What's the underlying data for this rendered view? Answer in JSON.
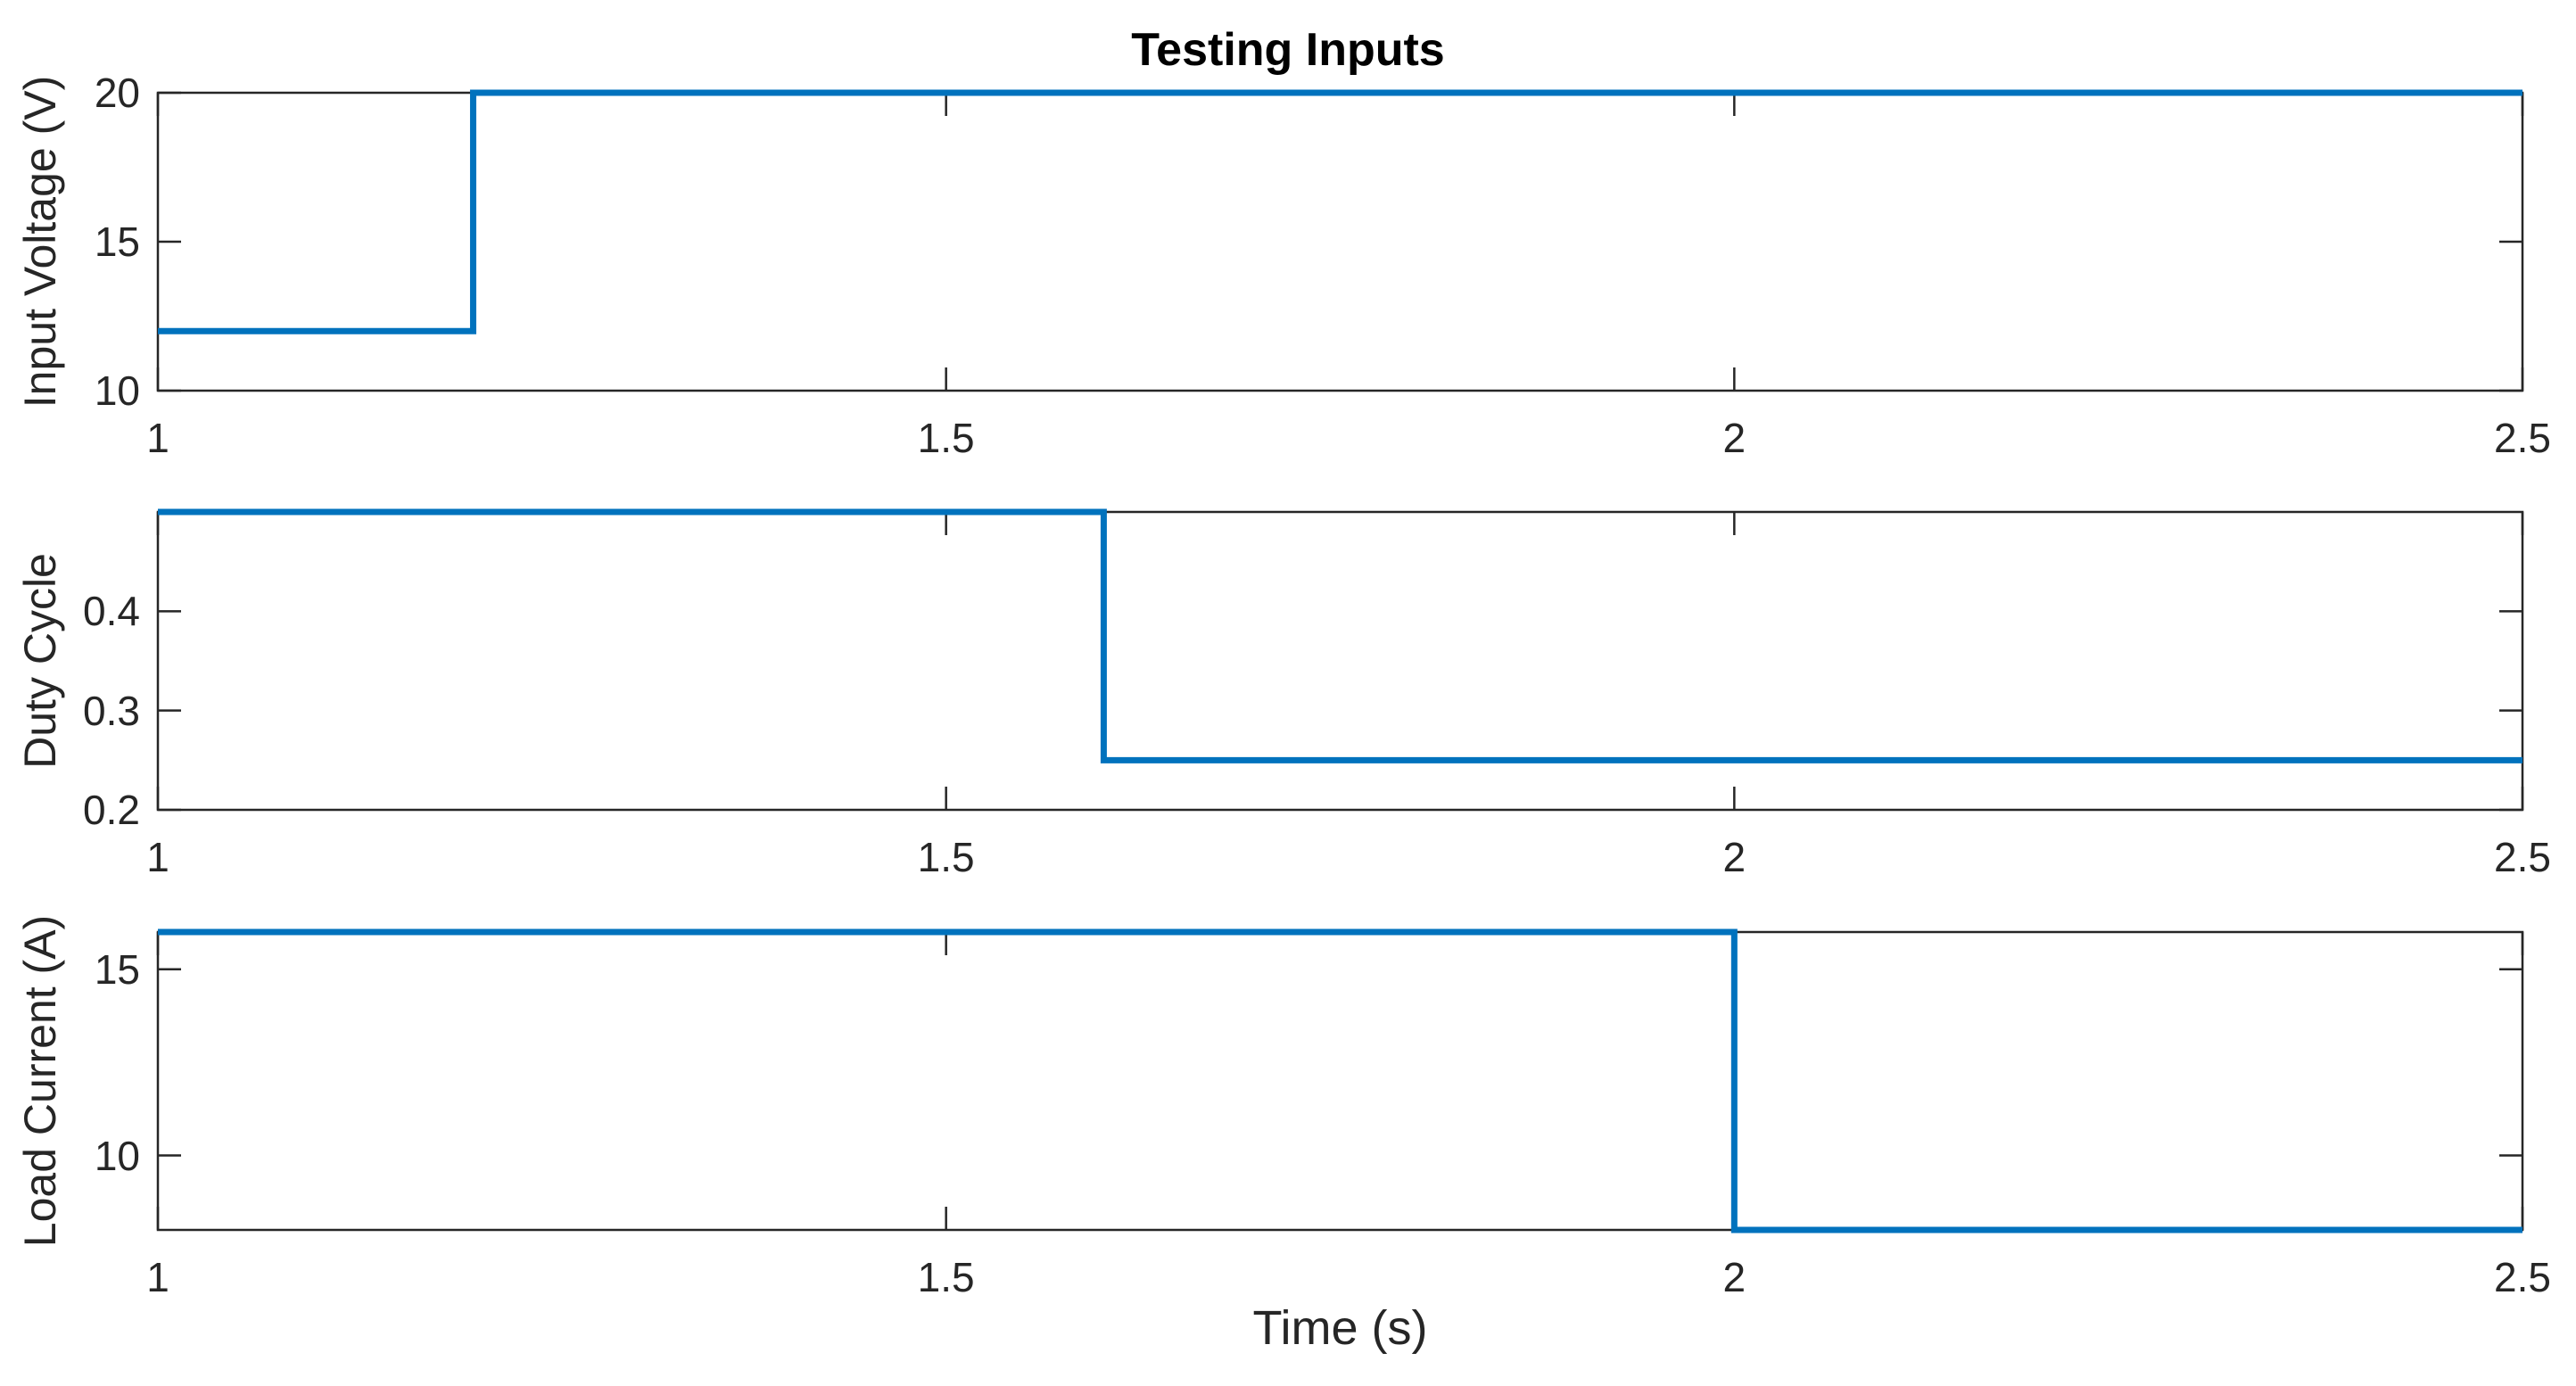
{
  "figure": {
    "title": "Testing Inputs",
    "xlabel": "Time (s)",
    "line_color": "#0072BD",
    "axis_color": "#262626",
    "text_color": "#262626",
    "background_color": "#FFFFFF",
    "grid": "off",
    "legend": "none"
  },
  "chart_data": [
    {
      "type": "line",
      "id": "input-voltage",
      "ylabel": "Input Voltage (V)",
      "x": [
        1,
        1.2,
        1.2,
        2.5
      ],
      "y": [
        12,
        12,
        20,
        20
      ],
      "initial_value": 12,
      "final_value": 20,
      "step_time_s": 1.2,
      "xlim": [
        1,
        2.5
      ],
      "ylim": [
        10,
        20
      ],
      "xticks": [
        1,
        1.5,
        2,
        2.5
      ],
      "xtick_labels": [
        "1",
        "1.5",
        "2",
        "2.5"
      ],
      "yticks": [
        10,
        15,
        20
      ],
      "ytick_labels": [
        "10",
        "15",
        "20"
      ]
    },
    {
      "type": "line",
      "id": "duty-cycle",
      "ylabel": "Duty Cycle",
      "x": [
        1,
        1.6,
        1.6,
        2.5
      ],
      "y": [
        0.5,
        0.5,
        0.25,
        0.25
      ],
      "initial_value": 0.5,
      "final_value": 0.25,
      "step_time_s": 1.6,
      "xlim": [
        1,
        2.5
      ],
      "ylim": [
        0.2,
        0.5
      ],
      "xticks": [
        1,
        1.5,
        2,
        2.5
      ],
      "xtick_labels": [
        "1",
        "1.5",
        "2",
        "2.5"
      ],
      "yticks": [
        0.2,
        0.3,
        0.4
      ],
      "ytick_labels": [
        "0.2",
        "0.3",
        "0.4"
      ]
    },
    {
      "type": "line",
      "id": "load-current",
      "ylabel": "Load Current (A)",
      "x": [
        1,
        2,
        2,
        2.5
      ],
      "y": [
        16,
        16,
        8,
        8
      ],
      "initial_value": 16,
      "final_value": 8,
      "step_time_s": 2,
      "xlim": [
        1,
        2.5
      ],
      "ylim": [
        8,
        16
      ],
      "xticks": [
        1,
        1.5,
        2,
        2.5
      ],
      "xtick_labels": [
        "1",
        "1.5",
        "2",
        "2.5"
      ],
      "yticks": [
        10,
        15
      ],
      "ytick_labels": [
        "10",
        "15"
      ]
    }
  ]
}
